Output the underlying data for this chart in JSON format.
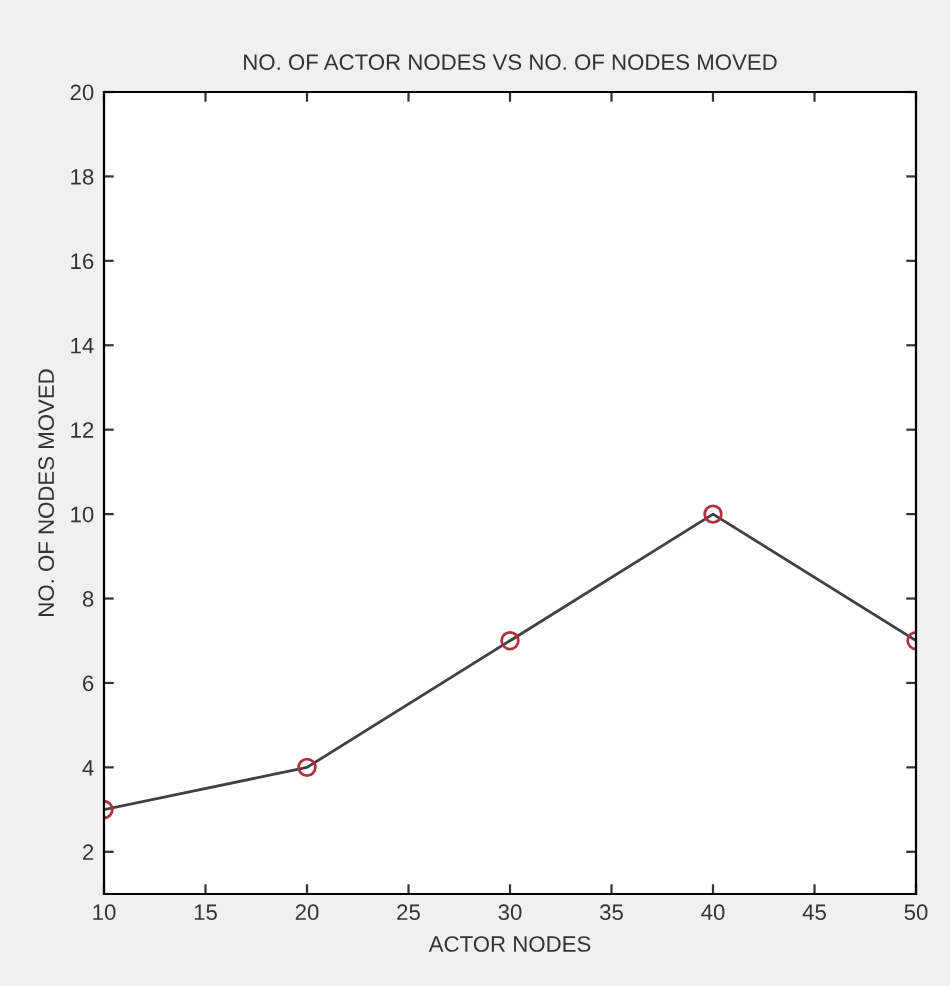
{
  "chart_data": {
    "type": "line",
    "title": "NO. OF ACTOR NODES VS NO. OF NODES MOVED",
    "xlabel": "ACTOR NODES",
    "ylabel": "NO. OF NODES MOVED",
    "x": [
      10,
      20,
      30,
      40,
      50
    ],
    "series": [
      {
        "color": "#404040",
        "values": [
          3,
          4,
          7,
          10,
          7
        ]
      }
    ],
    "marker": "circle",
    "line_style": "solid",
    "xlim": [
      10,
      50
    ],
    "xticks": [
      10,
      15,
      20,
      25,
      30,
      35,
      40,
      45,
      50
    ],
    "ylim": [
      1,
      20
    ],
    "yticks": [
      2,
      4,
      6,
      8,
      10,
      12,
      14,
      16,
      18,
      20
    ],
    "grid": false
  }
}
